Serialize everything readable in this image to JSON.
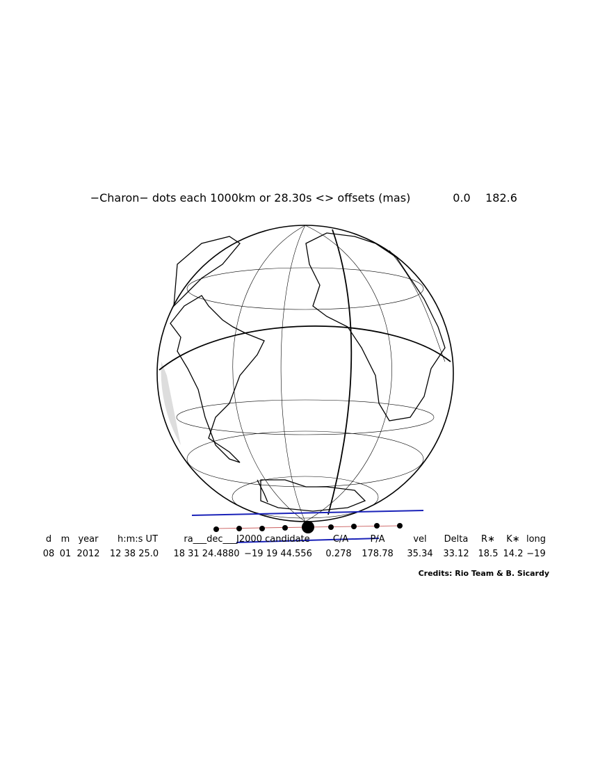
{
  "header": {
    "title": "−Charon− dots each 1000km or 28.30s <> offsets (mas)",
    "offsets": [
      "0.0",
      "182.6"
    ]
  },
  "table": {
    "columns": [
      "d",
      "m",
      "year",
      "h:m:s UT",
      "ra___dec___J2000 candidate",
      "C/A",
      "P/A",
      "vel",
      "Delta",
      "R∗",
      "K∗",
      "long"
    ],
    "values": [
      "08",
      "01",
      "2012",
      "12 38 25.0",
      "18 31 24.4880",
      "−19 19 44.556",
      "0.278",
      "178.78",
      "35.34",
      "33.12",
      "18.5",
      "14.2",
      "−19"
    ]
  },
  "credits": "Credits: Rio Team & B. Sicardy"
}
